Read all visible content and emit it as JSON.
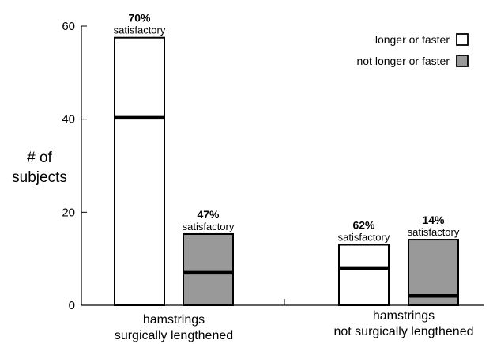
{
  "chart_data": {
    "type": "bar",
    "ylabel": [
      "# of",
      "subjects"
    ],
    "ylim": [
      0,
      60
    ],
    "yticks": [
      0,
      20,
      40,
      60
    ],
    "groups": [
      {
        "label": [
          "hamstrings",
          "surgically lengthened"
        ],
        "bars": [
          {
            "series": "longer or faster",
            "value": 57.5,
            "marker": 40.3,
            "pct": "70%",
            "note": "satisfactory"
          },
          {
            "series": "not longer or faster",
            "value": 15.3,
            "marker": 7.0,
            "pct": "47%",
            "note": "satisfactory"
          }
        ]
      },
      {
        "label": [
          "hamstrings",
          "not surgically lengthened"
        ],
        "bars": [
          {
            "series": "longer or faster",
            "value": 13.0,
            "marker": 8.0,
            "pct": "62%",
            "note": "satisfactory"
          },
          {
            "series": "not longer or faster",
            "value": 14.1,
            "marker": 2.0,
            "pct": "14%",
            "note": "satisfactory"
          }
        ]
      }
    ],
    "legend": {
      "position": "top-right",
      "entries": [
        {
          "label": "longer or faster",
          "color": "#ffffff"
        },
        {
          "label": "not longer or faster",
          "color": "#999999"
        }
      ]
    }
  }
}
